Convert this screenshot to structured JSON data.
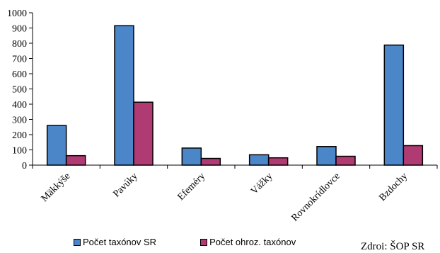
{
  "chart_data": {
    "type": "bar",
    "categories": [
      "Mäkkýše",
      "Pavúky",
      "Efeméry",
      "Vážky",
      "Rovnokrídlovce",
      "Bzdochy"
    ],
    "series": [
      {
        "name": "Počet taxónov SR",
        "values": [
          260,
          915,
          112,
          68,
          122,
          788
        ],
        "color": "#4a86c8"
      },
      {
        "name": "Počet ohroz. taxónov",
        "values": [
          62,
          413,
          44,
          48,
          58,
          128
        ],
        "color": "#b03a72"
      }
    ],
    "ylim": [
      0,
      1000
    ],
    "yticks": [
      0,
      100,
      200,
      300,
      400,
      500,
      600,
      700,
      800,
      900,
      1000
    ],
    "grid": false,
    "legend_position": "bottom"
  },
  "source": "Zdroi: ŠOP SR"
}
